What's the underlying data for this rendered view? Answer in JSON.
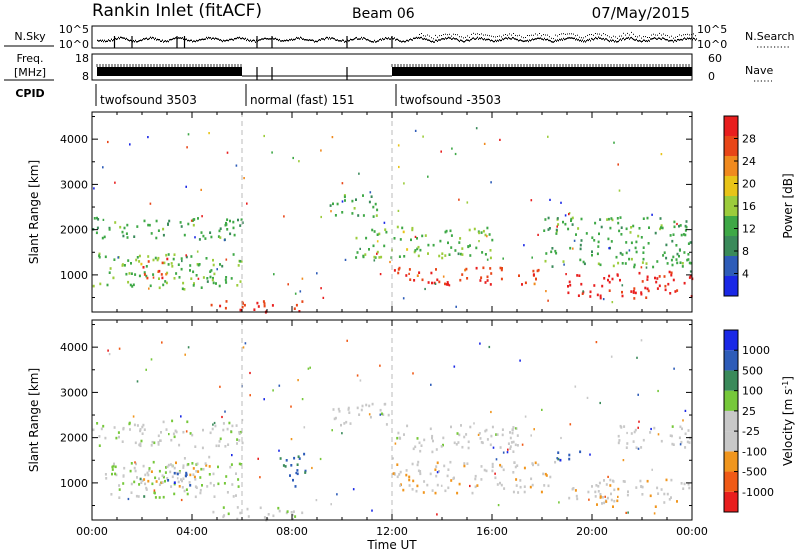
{
  "header": {
    "title": "Rankin Inlet (fitACF)",
    "beam": "Beam 06",
    "date": "07/May/2015"
  },
  "status_panels": {
    "nsky_label": "N.Sky",
    "nsearch_label": "N.Search",
    "nsky_ticks": [
      "10^5",
      "10^0"
    ],
    "nsearch_ticks": [
      "10^5",
      "10^0"
    ],
    "freq_label_top": "Freq.",
    "freq_label_unit": "[MHz]",
    "freq_ticks": [
      "18",
      "8"
    ],
    "nave_label": "Nave",
    "nave_ticks": [
      "60",
      "0"
    ],
    "cpid_label": "CPID",
    "cpid_segments": [
      {
        "label": "twofsound 3503",
        "start_hour": 0,
        "end_hour": 6
      },
      {
        "label": "normal (fast) 151",
        "start_hour": 6,
        "end_hour": 12
      },
      {
        "label": "twofsound -3503",
        "start_hour": 12,
        "end_hour": 24
      }
    ]
  },
  "colors": {
    "power": [
      "#1a28e6",
      "#2e5cb8",
      "#3a8a5a",
      "#3ea846",
      "#9ccc3c",
      "#e8c418",
      "#f08a1e",
      "#e84618",
      "#e81e1e"
    ],
    "velocity": [
      "#e81e1e",
      "#f05a16",
      "#f0961e",
      "#c8c8c8",
      "#c8c8c8",
      "#76c83a",
      "#3a8a5a",
      "#2e5cb8",
      "#1a28e6"
    ]
  },
  "chart_data": [
    {
      "type": "heatmap",
      "name": "power",
      "title": "",
      "xlabel": "",
      "ylabel": "Slant Range [km]",
      "xlim": [
        0,
        24
      ],
      "ylim": [
        180,
        4600
      ],
      "x_ticks": [
        "00:00",
        "04:00",
        "08:00",
        "12:00",
        "16:00",
        "20:00",
        "00:00"
      ],
      "y_ticks": [
        1000,
        2000,
        3000,
        4000
      ],
      "colorbar_label": "Power [dB]",
      "colorbar_ticks": [
        "28",
        "24",
        "20",
        "16",
        "12",
        "8",
        "4"
      ],
      "colorbar_range": [
        0,
        32
      ],
      "features": [
        {
          "t0": 0.0,
          "t1": 6.0,
          "r0": 700,
          "r1": 1500,
          "mean": 14
        },
        {
          "t0": 0.0,
          "t1": 6.0,
          "r0": 1800,
          "r1": 2300,
          "mean": 12
        },
        {
          "t0": 2.0,
          "t1": 3.0,
          "r0": 900,
          "r1": 1400,
          "mean": 28
        },
        {
          "t0": 4.5,
          "t1": 8.5,
          "r0": 200,
          "r1": 450,
          "mean": 28
        },
        {
          "t0": 9.5,
          "t1": 11.5,
          "r0": 2300,
          "r1": 2800,
          "mean": 12
        },
        {
          "t0": 10.5,
          "t1": 16.0,
          "r0": 1400,
          "r1": 2100,
          "mean": 14
        },
        {
          "t0": 12.0,
          "t1": 18.0,
          "r0": 800,
          "r1": 1200,
          "mean": 28
        },
        {
          "t0": 19.0,
          "t1": 24.0,
          "r0": 500,
          "r1": 1100,
          "mean": 30
        },
        {
          "t0": 18.0,
          "t1": 24.0,
          "r0": 1200,
          "r1": 2300,
          "mean": 12
        }
      ]
    },
    {
      "type": "heatmap",
      "name": "velocity",
      "title": "",
      "xlabel": "Time UT",
      "ylabel": "Slant Range [km]",
      "xlim": [
        0,
        24
      ],
      "ylim": [
        180,
        4600
      ],
      "x_ticks": [
        "00:00",
        "04:00",
        "08:00",
        "12:00",
        "16:00",
        "20:00",
        "00:00"
      ],
      "y_ticks": [
        1000,
        2000,
        3000,
        4000
      ],
      "colorbar_label": "Velocity [m s^-1]",
      "colorbar_ticks": [
        "1000",
        "500",
        "100",
        "25",
        "-25",
        "-100",
        "-500",
        "-1000"
      ],
      "colorbar_range": [
        -1200,
        1200
      ],
      "features": [
        {
          "t0": 0.0,
          "t1": 6.0,
          "r0": 1800,
          "r1": 2400,
          "mean": 0
        },
        {
          "t0": 0.5,
          "t1": 6.0,
          "r0": 700,
          "r1": 1500,
          "mean": 150
        },
        {
          "t0": 2.0,
          "t1": 5.0,
          "r0": 900,
          "r1": 1600,
          "mean": -300
        },
        {
          "t0": 3.0,
          "t1": 4.0,
          "r0": 900,
          "r1": 1300,
          "mean": 800
        },
        {
          "t0": 4.5,
          "t1": 8.5,
          "r0": 200,
          "r1": 500,
          "mean": 100
        },
        {
          "t0": 7.5,
          "t1": 8.5,
          "r0": 900,
          "r1": 1700,
          "mean": 700
        },
        {
          "t0": 9.5,
          "t1": 12.0,
          "r0": 2300,
          "r1": 2800,
          "mean": 0
        },
        {
          "t0": 12.0,
          "t1": 17.0,
          "r0": 1700,
          "r1": 2300,
          "mean": 0
        },
        {
          "t0": 12.0,
          "t1": 18.5,
          "r0": 800,
          "r1": 1500,
          "mean": -300
        },
        {
          "t0": 18.5,
          "t1": 19.5,
          "r0": 1500,
          "r1": 1800,
          "mean": 800
        },
        {
          "t0": 19.0,
          "t1": 24.0,
          "r0": 500,
          "r1": 1100,
          "mean": -300
        },
        {
          "t0": 21.0,
          "t1": 24.0,
          "r0": 1800,
          "r1": 2300,
          "mean": 0
        }
      ]
    }
  ]
}
